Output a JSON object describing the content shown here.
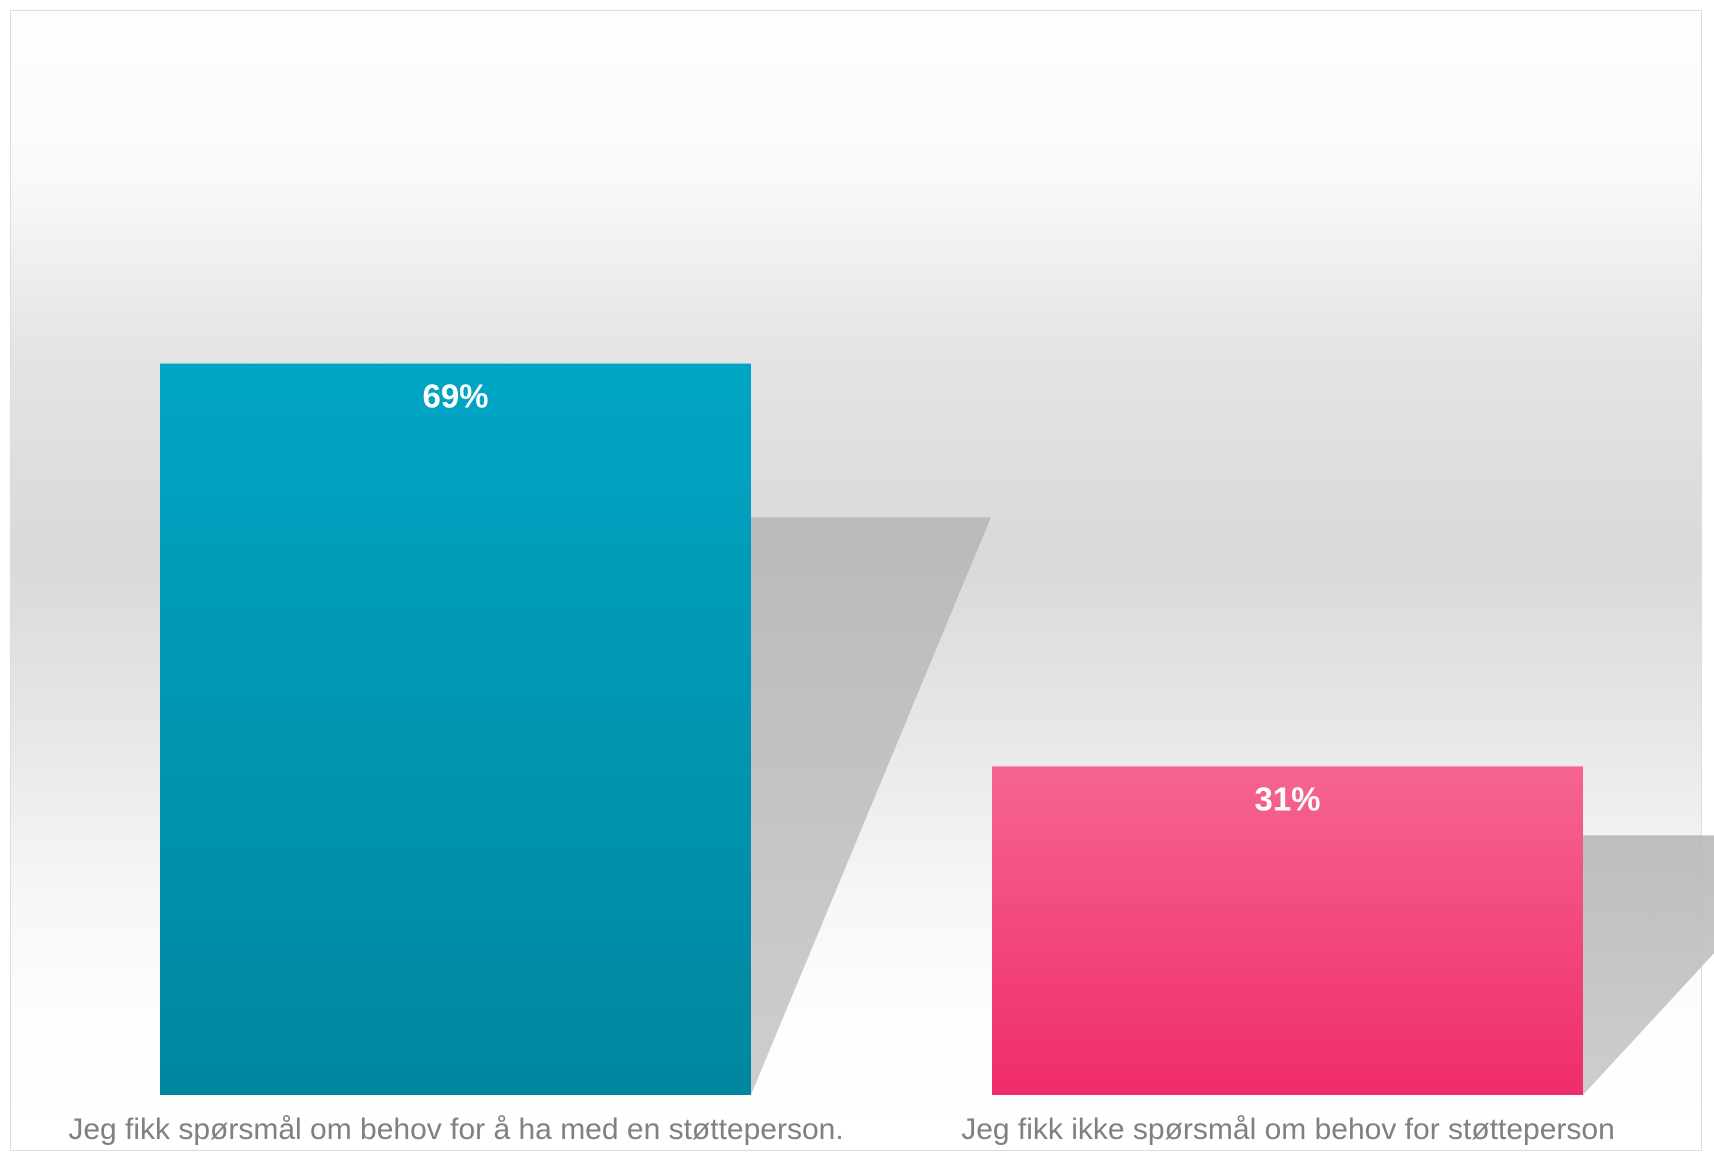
{
  "chart_data": {
    "type": "bar",
    "categories": [
      "Jeg fikk spørsmål om behov for å ha med en støtteperson.",
      "Jeg fikk ikke spørsmål om behov for støtteperson"
    ],
    "values": [
      69,
      31
    ],
    "data_labels": [
      "69%",
      "31%"
    ],
    "colors": [
      "#00a3c2",
      "#f4628e"
    ],
    "ylim": [
      0,
      100
    ],
    "grid": false,
    "legend": "none"
  }
}
